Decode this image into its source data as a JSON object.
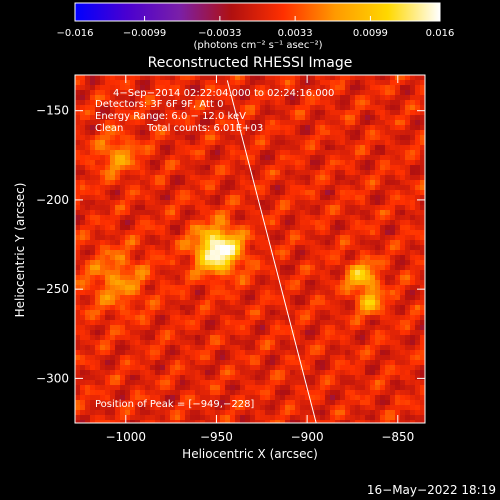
{
  "chart_data": {
    "type": "heatmap",
    "title": "Reconstructed RHESSI Image",
    "xlabel": "Heliocentric X (arcsec)",
    "ylabel": "Heliocentric Y (arcsec)",
    "xlim": [
      -1028,
      -835
    ],
    "ylim": [
      -325,
      -130
    ],
    "x_ticks": [
      -1000,
      -950,
      -900,
      -850
    ],
    "x_tick_labels": [
      "−1000",
      "−950",
      "−900",
      "−850"
    ],
    "y_ticks": [
      -150,
      -200,
      -250,
      -300
    ],
    "y_tick_labels": [
      "−150",
      "−200",
      "−250",
      "−300"
    ],
    "colorbar": {
      "min": -0.016,
      "max": 0.016,
      "ticks": [
        -0.016,
        -0.0099,
        -0.0033,
        0.0033,
        0.0099,
        0.016
      ],
      "tick_labels": [
        "−0.016",
        "−0.0099",
        "−0.0033",
        "0.0033",
        "0.0099",
        "0.016"
      ],
      "label": "(photons cm⁻² s⁻¹ asec⁻²)",
      "colors": [
        "#0000ff",
        "#4a00d0",
        "#7a1fa8",
        "#b01010",
        "#ff3000",
        "#ff9a00",
        "#ffd800",
        "#ffffff"
      ]
    },
    "annotations": {
      "time_range": "4−Sep−2014 02:22:04.000 to 02:24:16.000",
      "detectors": "Detectors: 3F 6F 9F, Att 0",
      "energy": "Energy Range: 6.0 − 12.0 keV",
      "clean": "Clean",
      "counts": "Total counts: 6.01E+03",
      "peak": "Position of Peak = [−949,−228]"
    },
    "sources": [
      {
        "x": -949,
        "y": -228,
        "peak": 0.016,
        "sigma": 9
      },
      {
        "x": -870,
        "y": -243,
        "peak": 0.0095,
        "sigma": 6
      },
      {
        "x": -865,
        "y": -257,
        "peak": 0.008,
        "sigma": 5
      },
      {
        "x": -1005,
        "y": -245,
        "peak": 0.0055,
        "sigma": 12
      },
      {
        "x": -1005,
        "y": -175,
        "peak": 0.006,
        "sigma": 8
      }
    ],
    "limb": {
      "points": [
        [
          -944,
          -133
        ],
        [
          -895,
          -325
        ]
      ]
    },
    "footer": "16−May−2022 18:19"
  }
}
